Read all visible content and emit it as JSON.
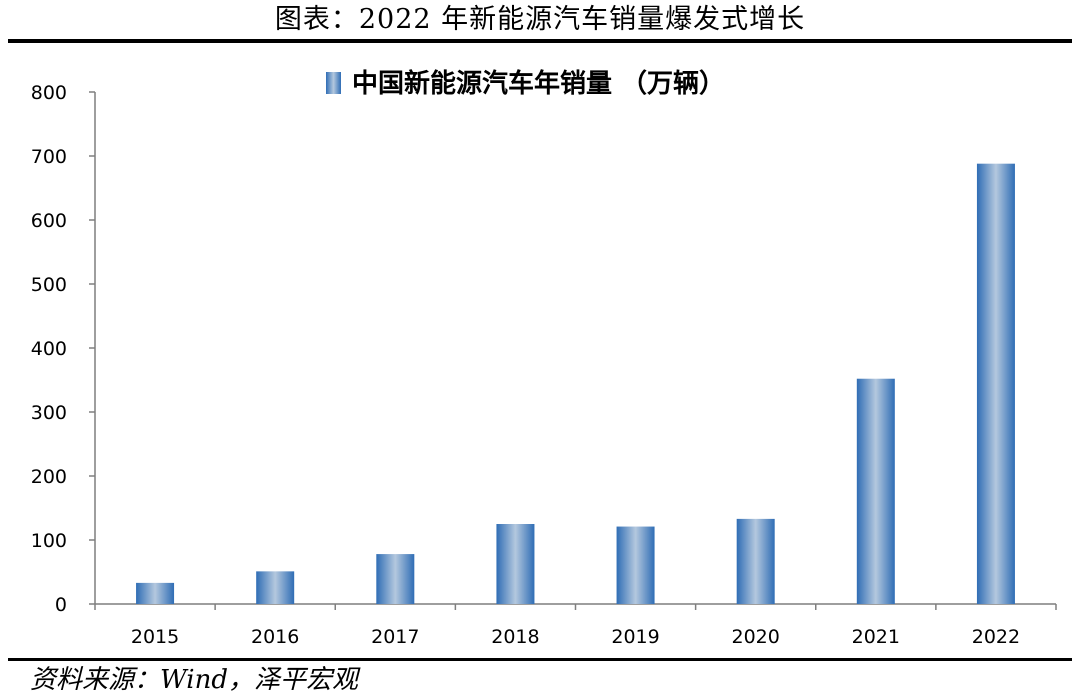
{
  "header": {
    "title": "图表：2022 年新能源汽车销量爆发式增长"
  },
  "footer": {
    "source": "资料来源：Wind，泽平宏观"
  },
  "chart_data": {
    "type": "bar",
    "categories": [
      "2015",
      "2016",
      "2017",
      "2018",
      "2019",
      "2020",
      "2021",
      "2022"
    ],
    "series": [
      {
        "name": "中国新能源汽车年销量 （万辆）",
        "values": [
          33,
          51,
          78,
          125,
          121,
          133,
          352,
          688
        ]
      }
    ],
    "ylim": [
      0,
      800
    ],
    "yticks": [
      0,
      100,
      200,
      300,
      400,
      500,
      600,
      700,
      800
    ],
    "grid": false,
    "legend": "top-center",
    "colors": {
      "bar_edge": "#2f6db5",
      "bar_center": "#b4c8de"
    }
  }
}
